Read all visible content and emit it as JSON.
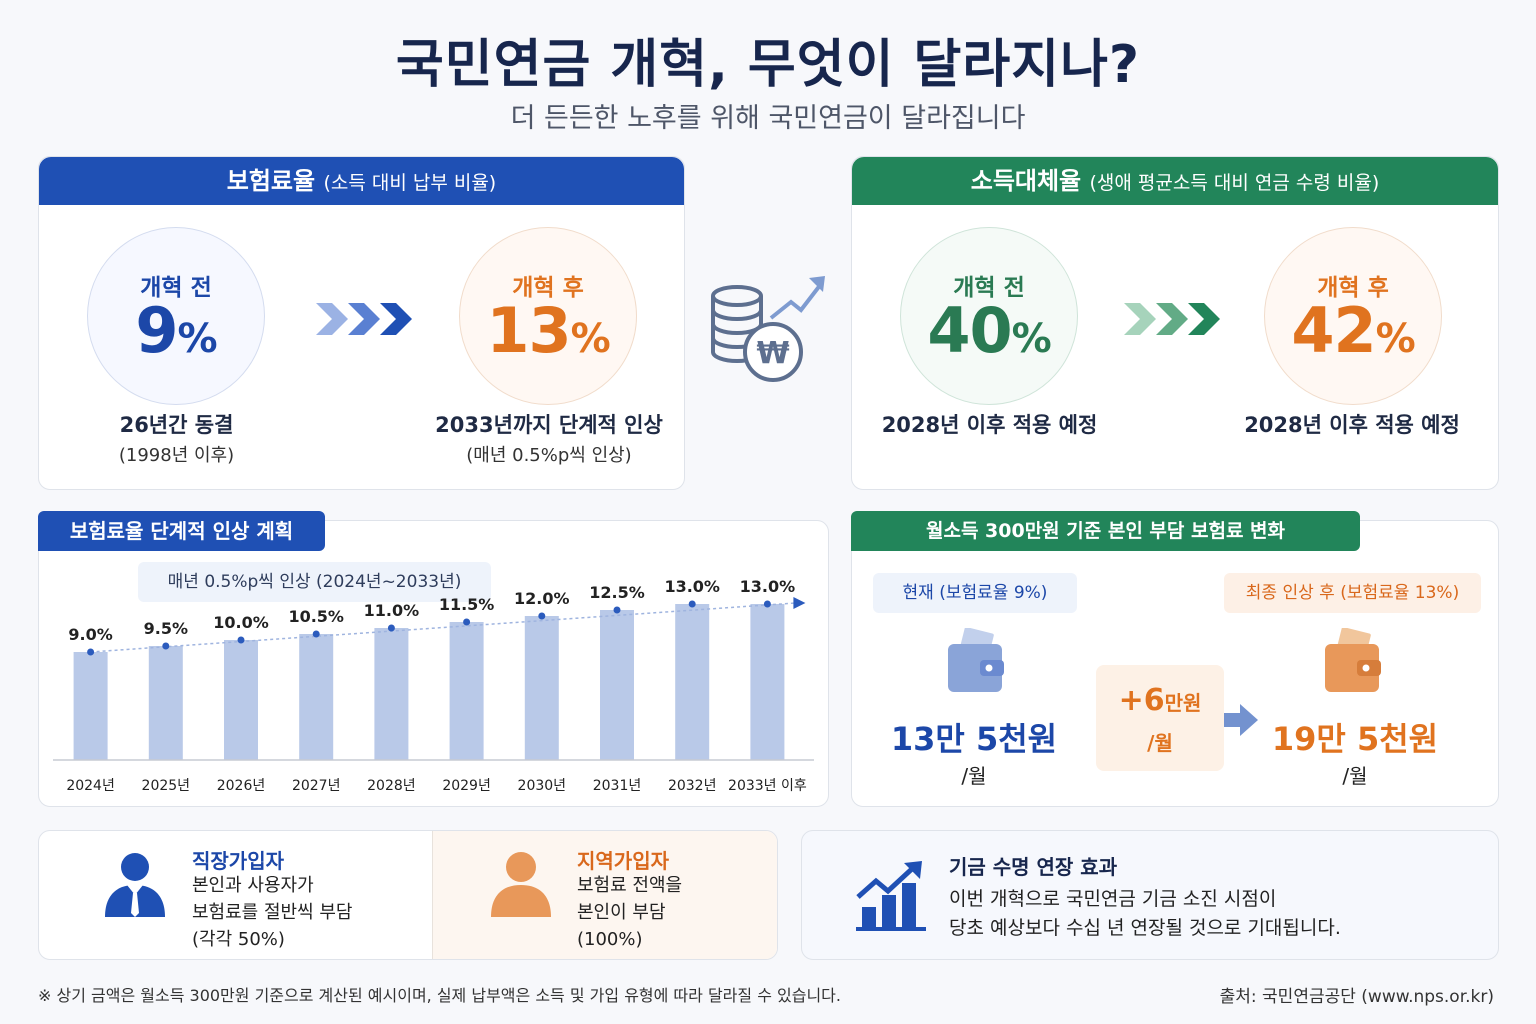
{
  "header": {
    "title": "국민연금 개혁, 무엇이 달라지나?",
    "subtitle": "더 든든한 노후를 위해 국민연금이 달라집니다"
  },
  "premium": {
    "title": "보험료율",
    "title_note": "(소득 대비 납부 비율)",
    "before": {
      "label": "개혁 전",
      "value": "9",
      "unit": "%",
      "caption": "26년간 동결",
      "caption2": "(1998년 이후)"
    },
    "after": {
      "label": "개혁 후",
      "value": "13",
      "unit": "%",
      "caption": "2033년까지 단계적 인상",
      "caption2": "(매년 0.5%p씩 인상)"
    }
  },
  "replacement": {
    "title": "소득대체율",
    "title_note": "(생애 평균소득 대비 연금 수령 비율)",
    "before": {
      "label": "개혁 전",
      "value": "40",
      "unit": "%",
      "caption": "2028년 이후 적용 예정"
    },
    "after": {
      "label": "개혁 후",
      "value": "42",
      "unit": "%",
      "caption": "2028년 이후 적용 예정"
    }
  },
  "plan": {
    "title": "보험료율 단계적 인상 계획",
    "note": "매년 0.5%p씩 인상 (2024년~2033년)"
  },
  "chart_data": {
    "type": "bar",
    "title": "보험료율 단계적 인상 계획",
    "categories": [
      "2024년",
      "2025년",
      "2026년",
      "2027년",
      "2028년",
      "2029년",
      "2030년",
      "2031년",
      "2032년",
      "2033년 이후"
    ],
    "values": [
      9.0,
      9.5,
      10.0,
      10.5,
      11.0,
      11.5,
      12.0,
      12.5,
      13.0,
      13.0
    ],
    "value_labels": [
      "9.0%",
      "9.5%",
      "10.0%",
      "10.5%",
      "11.0%",
      "11.5%",
      "12.0%",
      "12.5%",
      "13.0%",
      "13.0%"
    ],
    "ylim": [
      0,
      13.5
    ],
    "grid": false,
    "bar_color": "#b9c9e8",
    "line_color": "#2b5bbd"
  },
  "burden": {
    "title": "월소득 300만원 기준 본인 부담 보험료 변화",
    "current_label": "현재 (보험료율 9%)",
    "current_amount": "13만 5천원",
    "current_per": "/월",
    "diff_value": "+6",
    "diff_unit": "만원",
    "diff_per": "/월",
    "final_label": "최종 인상 후 (보험료율 13%)",
    "final_amount": "19만 5천원",
    "final_per": "/월"
  },
  "subscribers": {
    "workplace": {
      "title": "직장가입자",
      "line1": "본인과 사용자가",
      "line2": "보험료를 절반씩 부담",
      "line3": "(각각 50%)"
    },
    "regional": {
      "title": "지역가입자",
      "line1": "보험료 전액을",
      "line2": "본인이 부담",
      "line3": "(100%)"
    }
  },
  "fund": {
    "title": "기금 수명 연장 효과",
    "line1": "이번 개혁으로 국민연금 기금 소진 시점이",
    "line2": "당초 예상보다 수십 년 연장될 것으로 기대됩니다."
  },
  "footer": {
    "note": "※ 상기 금액은 월소득 300만원 기준으로 계산된 예시이며, 실제 납부액은 소득 및 가입 유형에 따라 달라질 수 있습니다.",
    "source": "출처: 국민연금공단 (www.nps.or.kr)"
  },
  "colors": {
    "blue": "#1f50b4",
    "green": "#22855a",
    "orange": "#e0731f"
  }
}
